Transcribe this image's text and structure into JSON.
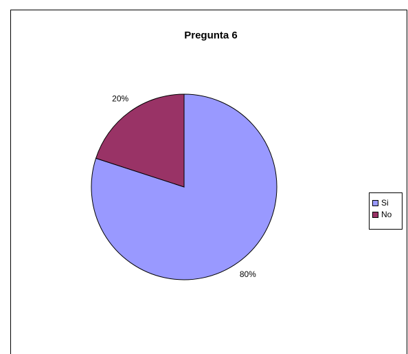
{
  "chart_data": {
    "type": "pie",
    "title": "Pregunta 6",
    "categories": [
      "Si",
      "No"
    ],
    "values": [
      80,
      20
    ],
    "value_labels": [
      "80%",
      "20%"
    ],
    "colors": [
      "#9999ff",
      "#993366"
    ],
    "legend": "right"
  }
}
